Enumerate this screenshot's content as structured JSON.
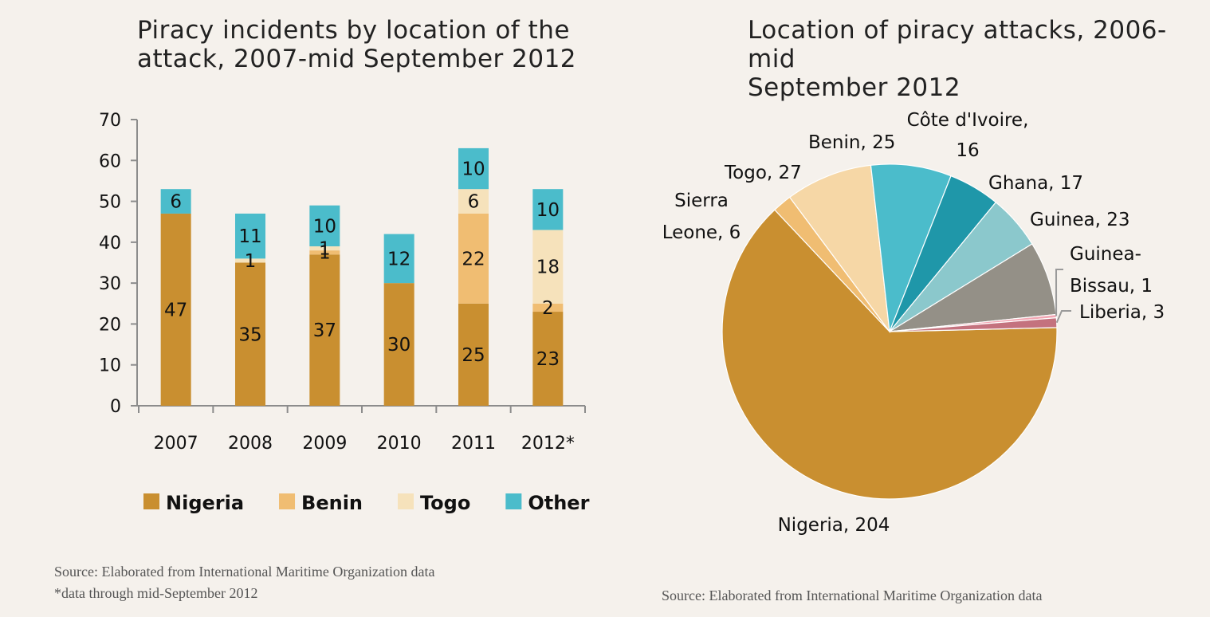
{
  "bar_panel": {
    "source_lines": [
      "Source: Elaborated from International Maritime Organization data",
      "*data through mid-September 2012"
    ]
  },
  "pie_panel": {
    "source": "Source: Elaborated from International Maritime Organization data"
  },
  "chart_data": [
    {
      "type": "bar",
      "stacked": true,
      "title_lines": [
        "Piracy incidents by location of the",
        "attack, 2007-mid September 2012"
      ],
      "categories": [
        "2007",
        "2008",
        "2009",
        "2010",
        "2011",
        "2012*"
      ],
      "series": [
        {
          "name": "Nigeria",
          "color": "#c98f30",
          "values": [
            47,
            35,
            37,
            30,
            25,
            23
          ]
        },
        {
          "name": "Benin",
          "color": "#f0bd72",
          "values": [
            0,
            0,
            1,
            0,
            22,
            2
          ]
        },
        {
          "name": "Togo",
          "color": "#f6e2bb",
          "values": [
            0,
            1,
            1,
            0,
            6,
            18
          ]
        },
        {
          "name": "Other",
          "color": "#4bbccb",
          "values": [
            6,
            11,
            10,
            12,
            10,
            10
          ]
        }
      ],
      "ylim": [
        0,
        70
      ],
      "yticks": [
        0,
        10,
        20,
        30,
        40,
        50,
        60,
        70
      ],
      "xlabel": "",
      "ylabel": "",
      "grid": false,
      "legend": "bottom"
    },
    {
      "type": "pie",
      "title_lines": [
        "Location of piracy attacks, 2006-mid",
        "September 2012"
      ],
      "slices": [
        {
          "label": "Nigeria",
          "value": 204,
          "color": "#c98f30"
        },
        {
          "label": "Sierra Leone",
          "value": 6,
          "color": "#f0bd72"
        },
        {
          "label": "Togo",
          "value": 27,
          "color": "#f6d7a6"
        },
        {
          "label": "Benin",
          "value": 25,
          "color": "#4bbccb"
        },
        {
          "label": "Côte d'Ivoire",
          "value": 16,
          "color": "#1f97a9"
        },
        {
          "label": "Ghana",
          "value": 17,
          "color": "#8bc8cc"
        },
        {
          "label": "Guinea",
          "value": 23,
          "color": "#949087"
        },
        {
          "label": "Guinea-Bissau",
          "value": 1,
          "color": "#f2a7b3"
        },
        {
          "label": "Liberia",
          "value": 3,
          "color": "#c4727e"
        }
      ],
      "legend": "none"
    }
  ]
}
